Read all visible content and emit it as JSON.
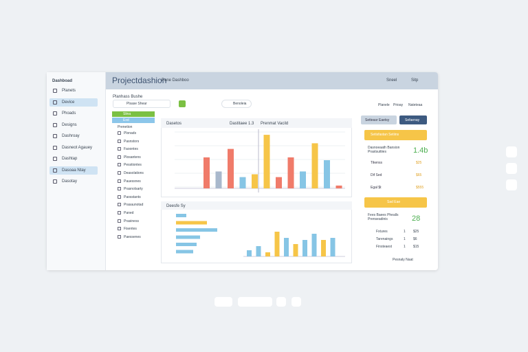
{
  "header": {
    "title": "Projectdashion",
    "subtitle": "Pane Dashboo",
    "user": "Sneel",
    "help": "Sitp"
  },
  "sidebar": {
    "title": "Dashboad",
    "items": [
      "Planets",
      "Device",
      "Phoads",
      "Designs",
      "Dashroay",
      "Dasneot Agauey",
      "Dashtap",
      "Dasoaa Ntay",
      "Dasotay"
    ],
    "active": [
      1,
      7
    ]
  },
  "toolbar": {
    "heading": "Planhass Bushe",
    "search": "Plsase Shear",
    "user": "Benoleia",
    "links": [
      "Planele",
      "Prioay",
      "Nateteaa"
    ]
  },
  "list": {
    "tabs": [
      "Slina",
      "Exd"
    ],
    "heading": "Prenetion",
    "items": [
      "Plonads",
      "Pasnstors",
      "Faoontes",
      "Plosantens",
      "Pesstiontes",
      "Deasolations",
      "Pauessnes",
      "Prasnolsarty",
      "Paosstants",
      "Prasaunotad",
      "Paned",
      "Prasiness",
      "Fisentes",
      "Paessenes"
    ]
  },
  "charts": [
    {
      "title": "Dasetos",
      "legend": [
        "Dastitaee 1.3",
        "Prenmat Vacild"
      ],
      "ylim": [
        0,
        100
      ],
      "values": [
        55,
        30,
        70,
        20,
        25,
        95,
        20,
        55,
        30,
        80,
        50,
        5
      ],
      "colors": [
        "#f07b6a",
        "#a9b8cc",
        "#f07b6a",
        "#86c5e5",
        "#f6c548",
        "#f6c548",
        "#f07b6a",
        "#f07b6a",
        "#86c5e5",
        "#f6c548",
        "#86c5e5",
        "#f07b6a"
      ]
    },
    {
      "title": "Deesfe Sy",
      "xlim": [
        0,
        100
      ],
      "bars": [
        15,
        45,
        60,
        35,
        30,
        25
      ],
      "bar_colors": [
        "#86c5e5",
        "#f6c548",
        "#86c5e5",
        "#86c5e5",
        "#86c5e5",
        "#86c5e5"
      ],
      "ylim": [
        0,
        100
      ],
      "values": [
        15,
        25,
        10,
        60,
        45,
        30,
        40,
        55,
        40,
        45
      ],
      "colors": [
        "#86c5e5",
        "#86c5e5",
        "#f6c548",
        "#f6c548",
        "#86c5e5",
        "#f6c548",
        "#86c5e5",
        "#86c5e5",
        "#f6c548",
        "#86c5e5"
      ]
    }
  ],
  "summary": {
    "buttons": [
      "Setteasr Eaetsy",
      "Sefaenay"
    ],
    "banner1": "Setisfastan Setiins",
    "card1": {
      "label": "Dasnoeaath Bansion Prastsuitiies",
      "value": "1.4b"
    },
    "rows1": [
      [
        "Tikenss",
        "$25"
      ],
      [
        "Dif Sed",
        "$65"
      ],
      [
        "Egal $t",
        "$555"
      ]
    ],
    "banner2": "Sad Eae",
    "card2": {
      "label": "Fees Baees Phealls Prenseadinis",
      "value": "28"
    },
    "rows2": [
      [
        "Fxtures",
        "1",
        "$25"
      ],
      [
        "Tarenaings",
        "1",
        "$6"
      ],
      [
        "Finsteaest",
        "1",
        "$15"
      ]
    ],
    "footer": "Pesnaly Naat"
  }
}
